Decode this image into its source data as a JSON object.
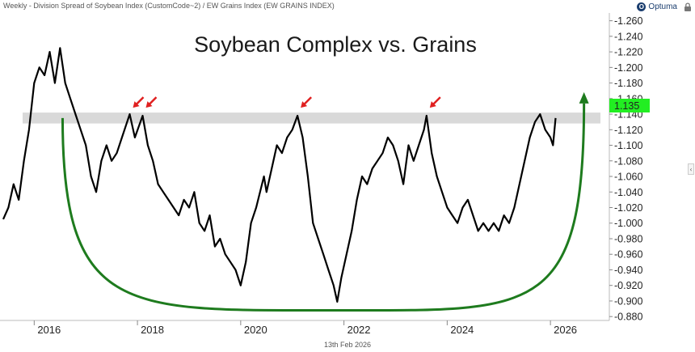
{
  "header": {
    "subtitle": "Weekly - Division Spread of Soybean Index (CustomCode~2) / EW Grains Index (EW GRAINS INDEX)",
    "brand": "Optuma",
    "brand_initial": "O"
  },
  "footer": {
    "date": "13th Feb 2026"
  },
  "colors": {
    "line": "#000000",
    "bowl": "#1e7b1e",
    "arrow": "#e02020",
    "band": "#d9d9d9",
    "last_value_bg": "#22ee22"
  },
  "icons": {
    "lock": "lock-icon",
    "collapse": "chevron-left-icon",
    "brand": "optuma-logo-icon"
  },
  "chart_data": {
    "type": "line",
    "title": "Soybean Complex vs. Grains",
    "xlabel": "",
    "ylabel": "",
    "xlim": [
      2015.4,
      2027.0
    ],
    "ylim": [
      0.875,
      1.27
    ],
    "x_ticks": [
      "2016",
      "2018",
      "2020",
      "2022",
      "2024",
      "2026"
    ],
    "y_ticks": [
      "1.260",
      "1.240",
      "1.220",
      "1.200",
      "1.180",
      "1.160",
      "1.140",
      "1.120",
      "1.100",
      "1.080",
      "1.060",
      "1.040",
      "1.020",
      "1.000",
      "0.980",
      "0.960",
      "0.940",
      "0.920",
      "0.900",
      "0.880"
    ],
    "last_value": "1.135",
    "resistance_band": [
      1.128,
      1.142
    ],
    "resistance_touches": [
      2017.85,
      2018.1,
      2021.1,
      2023.6
    ],
    "bowl_curve": {
      "start": [
        2016.55,
        1.135
      ],
      "bottom": [
        2021.9,
        0.888
      ],
      "end": [
        2026.65,
        1.135
      ]
    },
    "grid": false,
    "legend": "none",
    "series": [
      {
        "x": [
          2015.4,
          2015.5,
          2015.6,
          2015.7,
          2015.8,
          2015.9,
          2016.0,
          2016.1,
          2016.2,
          2016.3,
          2016.4,
          2016.5,
          2016.6,
          2016.7,
          2016.8,
          2016.9,
          2017.0,
          2017.1,
          2017.2,
          2017.3,
          2017.4,
          2017.5,
          2017.6,
          2017.7,
          2017.8,
          2017.85,
          2017.95,
          2018.1,
          2018.2,
          2018.3,
          2018.4,
          2018.5,
          2018.6,
          2018.7,
          2018.8,
          2018.9,
          2019.0,
          2019.1,
          2019.2,
          2019.3,
          2019.4,
          2019.5,
          2019.6,
          2019.7,
          2019.8,
          2019.9,
          2020.0,
          2020.1,
          2020.2,
          2020.3,
          2020.45,
          2020.5,
          2020.6,
          2020.7,
          2020.8,
          2020.9,
          2021.0,
          2021.1,
          2021.2,
          2021.3,
          2021.4,
          2021.5,
          2021.6,
          2021.7,
          2021.8,
          2021.87,
          2021.95,
          2022.05,
          2022.15,
          2022.25,
          2022.35,
          2022.45,
          2022.55,
          2022.65,
          2022.75,
          2022.85,
          2022.95,
          2023.05,
          2023.15,
          2023.25,
          2023.35,
          2023.45,
          2023.55,
          2023.6,
          2023.7,
          2023.8,
          2023.9,
          2024.0,
          2024.1,
          2024.2,
          2024.3,
          2024.4,
          2024.5,
          2024.6,
          2024.7,
          2024.8,
          2024.9,
          2025.0,
          2025.1,
          2025.2,
          2025.3,
          2025.4,
          2025.5,
          2025.6,
          2025.7,
          2025.8,
          2025.9,
          2026.0,
          2026.05,
          2026.1
        ],
        "y": [
          1.005,
          1.02,
          1.05,
          1.03,
          1.08,
          1.12,
          1.18,
          1.2,
          1.19,
          1.22,
          1.18,
          1.225,
          1.18,
          1.16,
          1.14,
          1.12,
          1.1,
          1.06,
          1.04,
          1.08,
          1.1,
          1.08,
          1.09,
          1.11,
          1.13,
          1.14,
          1.11,
          1.138,
          1.1,
          1.08,
          1.05,
          1.04,
          1.03,
          1.02,
          1.01,
          1.03,
          1.02,
          1.04,
          1.0,
          0.99,
          1.01,
          0.97,
          0.98,
          0.96,
          0.95,
          0.94,
          0.92,
          0.95,
          1.0,
          1.02,
          1.06,
          1.04,
          1.07,
          1.1,
          1.09,
          1.11,
          1.12,
          1.138,
          1.11,
          1.06,
          1.0,
          0.98,
          0.96,
          0.94,
          0.92,
          0.899,
          0.93,
          0.96,
          0.99,
          1.03,
          1.06,
          1.05,
          1.07,
          1.08,
          1.09,
          1.11,
          1.1,
          1.08,
          1.05,
          1.1,
          1.08,
          1.1,
          1.12,
          1.138,
          1.09,
          1.06,
          1.04,
          1.02,
          1.01,
          1.0,
          1.02,
          1.03,
          1.01,
          0.99,
          1.0,
          0.99,
          1.0,
          0.99,
          1.01,
          1.0,
          1.02,
          1.05,
          1.08,
          1.11,
          1.13,
          1.14,
          1.12,
          1.11,
          1.1,
          1.135
        ]
      }
    ]
  }
}
